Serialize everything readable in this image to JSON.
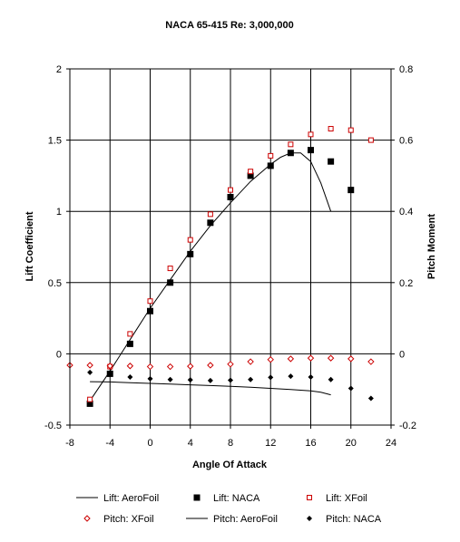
{
  "chart_data": {
    "type": "line",
    "title": "NACA 65-415 Re: 3,000,000",
    "xlabel": "Angle Of Attack",
    "ylabel": "Lift Coefficient",
    "y2label": "Pitch Moment",
    "xlim": [
      -8,
      24
    ],
    "ylim": [
      -0.5,
      2
    ],
    "y2lim": [
      -0.2,
      0.8
    ],
    "x_ticks": [
      -8,
      -4,
      0,
      4,
      8,
      12,
      16,
      20,
      24
    ],
    "y_ticks": [
      -0.5,
      0,
      0.5,
      1,
      1.5,
      2
    ],
    "y2_ticks": [
      -0.2,
      0,
      0.2,
      0.4,
      0.6,
      0.8
    ],
    "x_tick_labels": [
      "-8",
      "-4",
      "0",
      "4",
      "8",
      "12",
      "16",
      "20",
      "24"
    ],
    "y_tick_labels": [
      "-0.5",
      "0",
      "0.5",
      "1",
      "1.5",
      "2"
    ],
    "y2_tick_labels": [
      "-0.2",
      "0",
      "0.2",
      "0.4",
      "0.6",
      "0.8"
    ],
    "grid": true,
    "legend_position": "bottom",
    "series": [
      {
        "name": "Lift: AeroFoil",
        "axis": "left",
        "style": "line",
        "color": "#000000",
        "x": [
          -6,
          -4,
          -2,
          0,
          2,
          4,
          6,
          8,
          10,
          12,
          13,
          14,
          15,
          16,
          17,
          18
        ],
        "y": [
          -0.33,
          -0.12,
          0.1,
          0.32,
          0.52,
          0.72,
          0.9,
          1.06,
          1.21,
          1.33,
          1.38,
          1.41,
          1.41,
          1.35,
          1.2,
          1.0
        ]
      },
      {
        "name": "Lift: NACA",
        "axis": "left",
        "style": "marker",
        "marker": "filled-square",
        "color": "#000000",
        "x": [
          -6,
          -4,
          -2,
          0,
          2,
          4,
          6,
          8,
          10,
          12,
          14,
          16,
          18,
          20
        ],
        "y": [
          -0.35,
          -0.14,
          0.07,
          0.3,
          0.5,
          0.7,
          0.92,
          1.1,
          1.25,
          1.32,
          1.41,
          1.43,
          1.35,
          1.15
        ]
      },
      {
        "name": "Lift: XFoil",
        "axis": "left",
        "style": "marker",
        "marker": "open-square",
        "color": "#cc0000",
        "x": [
          -6,
          -4,
          -2,
          0,
          2,
          4,
          6,
          8,
          10,
          12,
          14,
          16,
          18,
          20,
          22
        ],
        "y": [
          -0.32,
          -0.09,
          0.14,
          0.37,
          0.6,
          0.8,
          0.98,
          1.15,
          1.28,
          1.39,
          1.47,
          1.54,
          1.58,
          1.57,
          1.5
        ]
      },
      {
        "name": "Pitch: XFoil",
        "axis": "right",
        "style": "marker",
        "marker": "open-diamond",
        "color": "#cc0000",
        "x": [
          -8,
          -6,
          -4,
          -2,
          0,
          2,
          4,
          6,
          8,
          10,
          12,
          14,
          16,
          18,
          20,
          22
        ],
        "y": [
          -0.032,
          -0.032,
          -0.034,
          -0.034,
          -0.036,
          -0.036,
          -0.035,
          -0.032,
          -0.029,
          -0.022,
          -0.016,
          -0.014,
          -0.012,
          -0.012,
          -0.014,
          -0.022
        ]
      },
      {
        "name": "Pitch: AeroFoil",
        "axis": "right",
        "style": "line",
        "color": "#000000",
        "x": [
          -6,
          -4,
          -2,
          0,
          2,
          4,
          6,
          8,
          10,
          12,
          14,
          16,
          17,
          18
        ],
        "y": [
          -0.078,
          -0.079,
          -0.081,
          -0.083,
          -0.085,
          -0.087,
          -0.089,
          -0.091,
          -0.094,
          -0.097,
          -0.1,
          -0.104,
          -0.108,
          -0.115
        ]
      },
      {
        "name": "Pitch: NACA",
        "axis": "right",
        "style": "marker",
        "marker": "filled-diamond",
        "color": "#000000",
        "x": [
          -6,
          -4,
          -2,
          0,
          2,
          4,
          6,
          8,
          10,
          12,
          14,
          16,
          18,
          20,
          22
        ],
        "y": [
          -0.052,
          -0.058,
          -0.065,
          -0.07,
          -0.072,
          -0.073,
          -0.075,
          -0.074,
          -0.072,
          -0.066,
          -0.063,
          -0.065,
          -0.072,
          -0.097,
          -0.125
        ]
      }
    ]
  }
}
